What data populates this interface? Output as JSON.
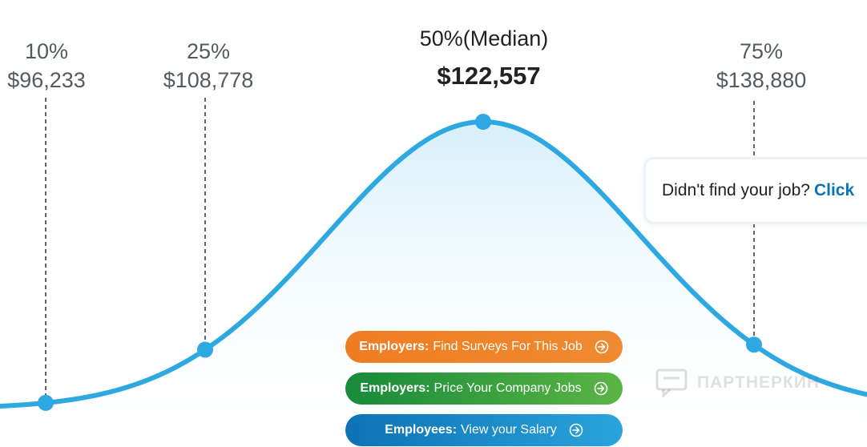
{
  "chart_data": {
    "type": "area",
    "description_points": [
      {
        "percentile": "10%",
        "value": "$96,233",
        "amount": 96233
      },
      {
        "percentile": "25%",
        "value": "$108,778",
        "amount": 108778
      },
      {
        "percentile": "50%(Median)",
        "value": "$122,557",
        "amount": 122557
      },
      {
        "percentile": "75%",
        "value": "$138,880",
        "amount": 138880
      }
    ],
    "colors": {
      "line": "#2ea8e0",
      "fill_top": "#dff2fb",
      "marker": "#2ea8e0",
      "guide": "#666666"
    }
  },
  "labels": {
    "p10_pct": "10%",
    "p10_val": "$96,233",
    "p25_pct": "25%",
    "p25_val": "$108,778",
    "median_pct": "50%(Median)",
    "median_val": "$122,557",
    "p75_pct": "75%",
    "p75_val": "$138,880"
  },
  "callout": {
    "text": "Didn't find your job?",
    "link": "Click"
  },
  "buttons": {
    "surveys": {
      "prefix": "Employers:",
      "text": "Find Surveys For This Job",
      "color": "#f07c22"
    },
    "price": {
      "prefix": "Employers:",
      "text": "Price Your Company Jobs",
      "color": "#178a3a"
    },
    "salary": {
      "prefix": "Employees:",
      "text": "View your Salary",
      "color": "#0e72b5"
    }
  },
  "watermark": {
    "text": "ПАРТНЕРКИН",
    "icon": "chat-bubble-icon"
  }
}
